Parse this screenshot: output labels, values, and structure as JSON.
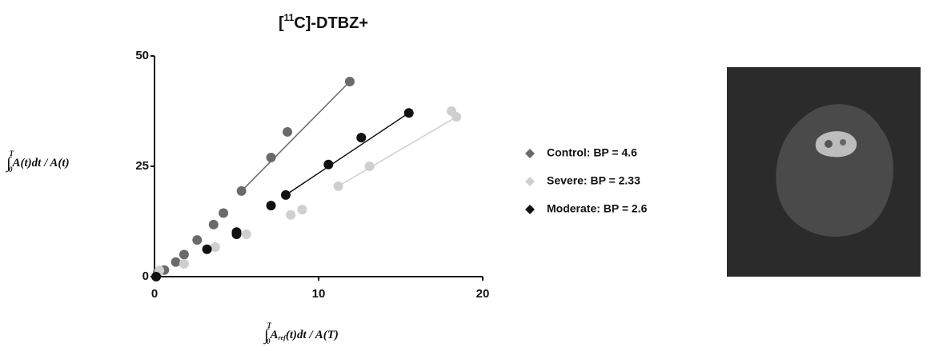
{
  "chart_data": {
    "type": "scatter",
    "title": {
      "open": "[",
      "sup": "11",
      "main": "C]-DTBZ+"
    },
    "xlabel": {
      "integral": "∫",
      "lower": "0",
      "upper": "T",
      "body": "A",
      "sub": "ref",
      "rest": "(t)dt / A(T)"
    },
    "ylabel": {
      "integral": "∫",
      "lower": "0",
      "upper": "T",
      "body": "A(t)dt / A(t)"
    },
    "xlim": [
      0,
      20
    ],
    "xticks": [
      0,
      10,
      20
    ],
    "ylim": [
      0,
      50
    ],
    "yticks": [
      0,
      25,
      50
    ],
    "grid": false,
    "legend": "right",
    "series": [
      {
        "name": "Control: BP = 4.6",
        "color": "#6a6a6a",
        "x": [
          0.2,
          0.6,
          1.3,
          1.8,
          2.6,
          3.6,
          4.2,
          5.3,
          7.1,
          8.1,
          11.9
        ],
        "values": [
          1,
          1.5,
          3.3,
          5,
          8.3,
          11.8,
          14.4,
          19.4,
          27,
          32.8,
          44.2
        ],
        "fit": {
          "x": [
            5.3,
            11.9
          ],
          "y": [
            19.4,
            44.2
          ]
        }
      },
      {
        "name": "Severe: BP = 2.33",
        "color": "#cfcfcf",
        "x": [
          0.3,
          1.8,
          3.7,
          5.6,
          8.3,
          9.0,
          11.2,
          13.1,
          18.1,
          18.4
        ],
        "values": [
          1.4,
          2.9,
          6.7,
          9.6,
          14,
          15.2,
          20.5,
          25,
          37.5,
          36.2
        ],
        "fit": {
          "x": [
            11.2,
            18.4
          ],
          "y": [
            20.5,
            36.2
          ]
        }
      },
      {
        "name": "Moderate: BP = 2.6",
        "color": "#111111",
        "x": [
          0.1,
          3.2,
          5.0,
          5.0,
          7.1,
          8.0,
          10.6,
          12.6,
          15.5
        ],
        "values": [
          0,
          6.2,
          10.1,
          9.6,
          16.1,
          18.5,
          25.4,
          31.5,
          37.1
        ],
        "fit": {
          "x": [
            8.0,
            15.5
          ],
          "y": [
            18.5,
            37.1
          ]
        }
      }
    ]
  }
}
